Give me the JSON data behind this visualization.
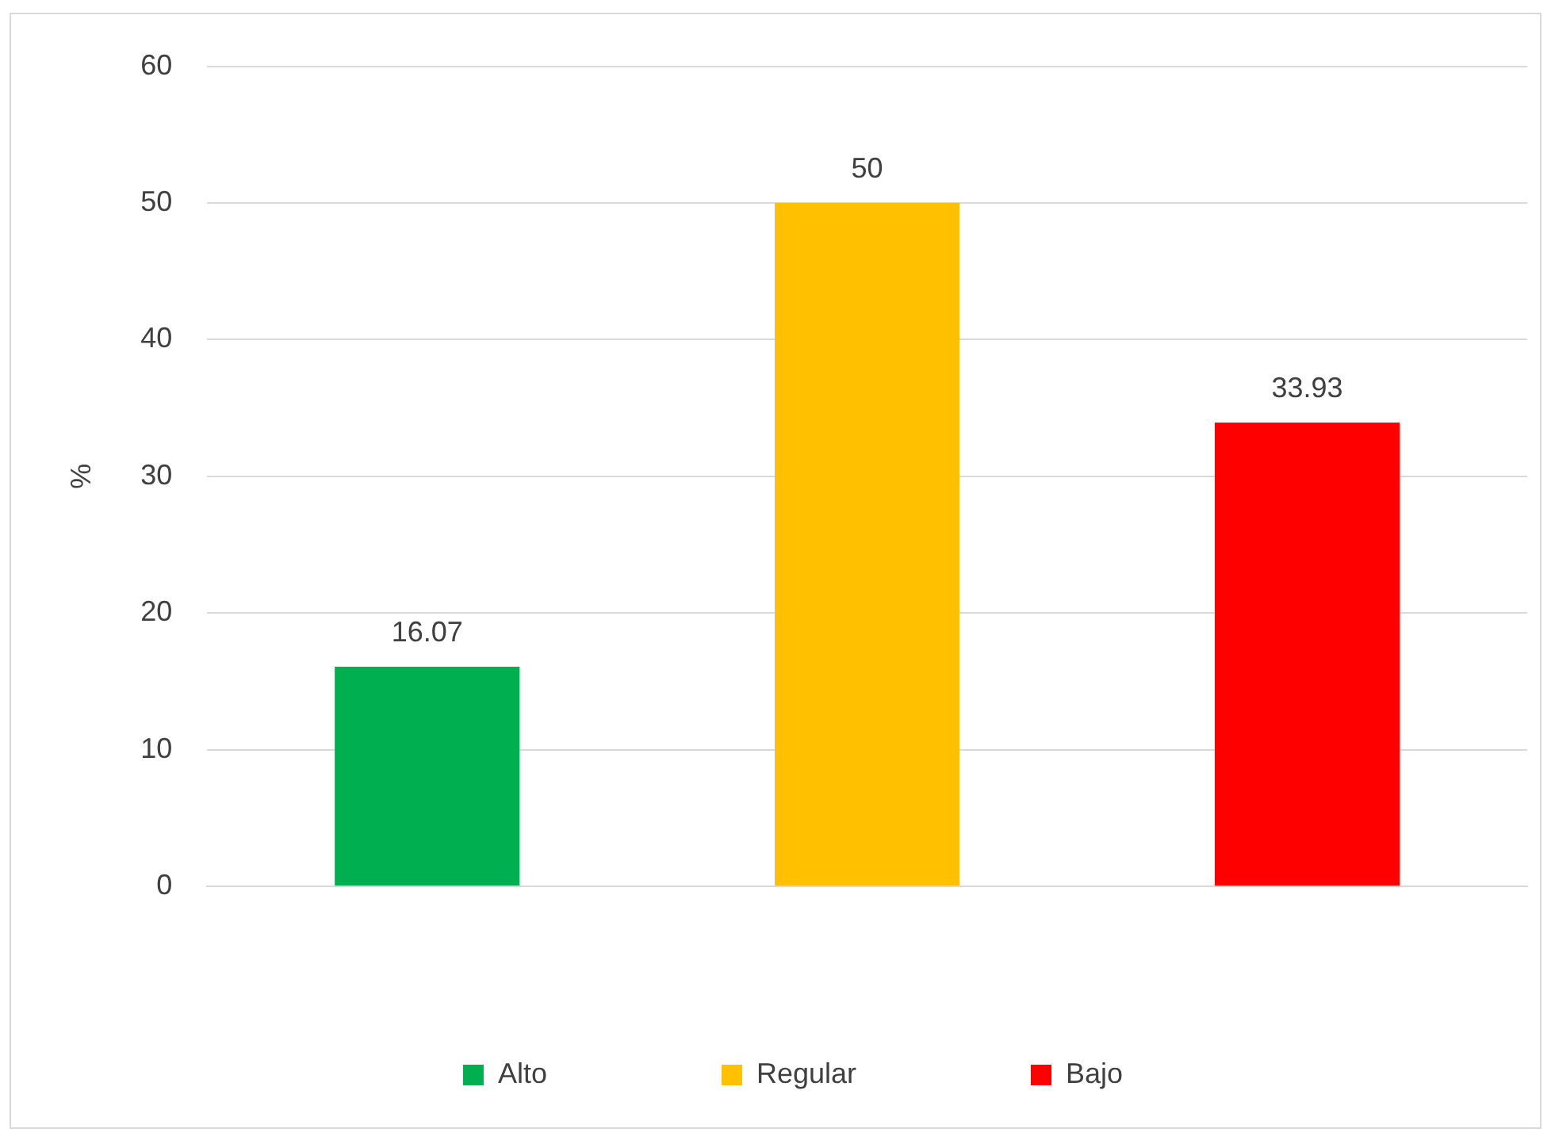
{
  "chart_data": {
    "type": "bar",
    "ylabel": "%",
    "categories": [
      null,
      null,
      null
    ],
    "series": [
      {
        "name": "Alto",
        "color": "#00b050",
        "values": [
          16.07,
          null,
          null
        ]
      },
      {
        "name": "Regular",
        "color": "#ffc000",
        "values": [
          null,
          50,
          null
        ]
      },
      {
        "name": "Bajo",
        "color": "#ff0000",
        "values": [
          null,
          null,
          33.93
        ]
      }
    ],
    "ylim": [
      0,
      60
    ],
    "yticks": [
      0,
      10,
      20,
      30,
      40,
      50,
      60
    ],
    "grid": "y",
    "legend": "bottom",
    "data_labels": true,
    "tick_labels": "y"
  }
}
